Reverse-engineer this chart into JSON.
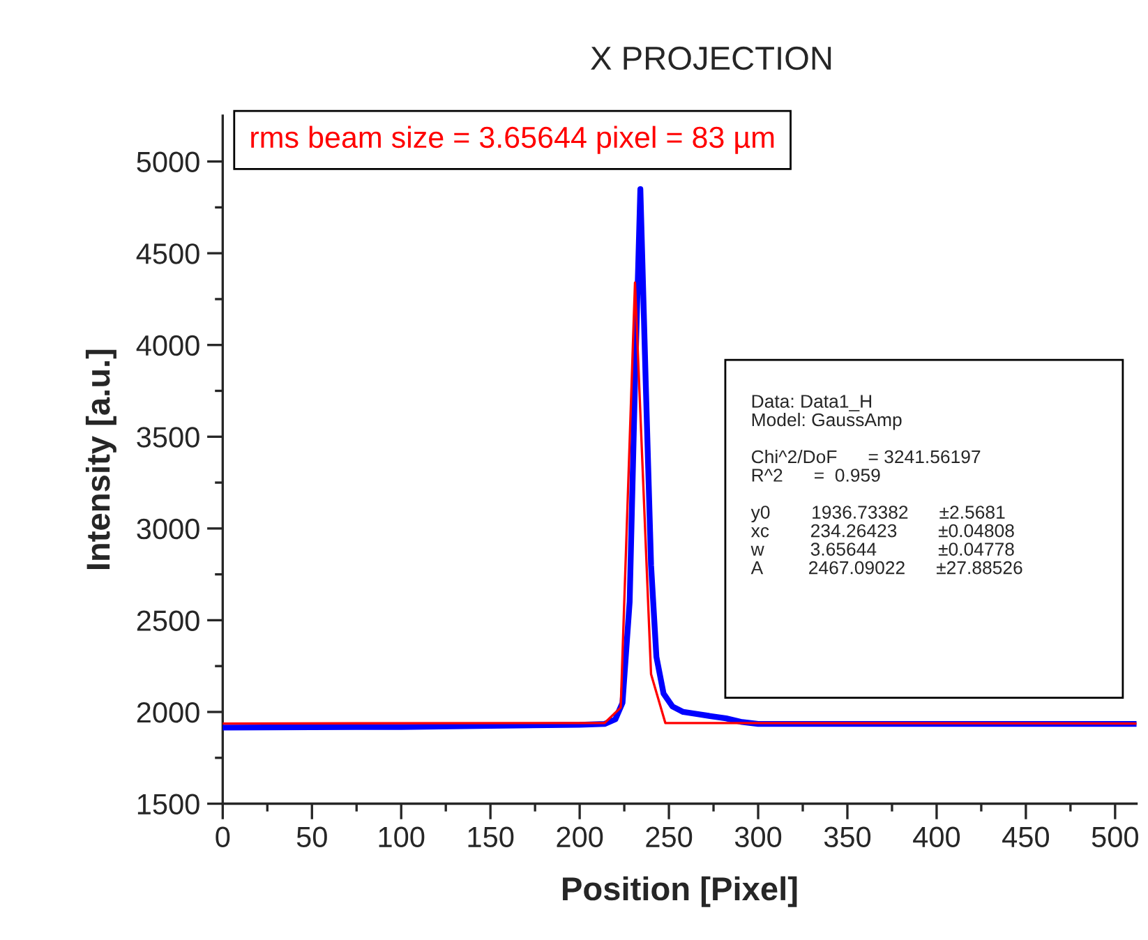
{
  "chart_data": {
    "type": "line",
    "title": "X PROJECTION",
    "xlabel": "Position [Pixel]",
    "ylabel": "Intensity [a.u.]",
    "xlim": [
      0,
      512
    ],
    "xticks": [
      0,
      50,
      100,
      150,
      200,
      250,
      300,
      350,
      400,
      450,
      500
    ],
    "ylim": [
      1500,
      5250
    ],
    "yticks": [
      1500,
      2000,
      2500,
      3000,
      3500,
      4000,
      4500,
      5000
    ],
    "grid": false,
    "legend": false,
    "marker": "none",
    "line_style": "solid",
    "series": [
      {
        "color": "#0000ff",
        "x": [
          0,
          50,
          100,
          150,
          200,
          214,
          220,
          224,
          228,
          231,
          234,
          237,
          240,
          243,
          247,
          252,
          258,
          265,
          273,
          282,
          291,
          300,
          350,
          400,
          450,
          512
        ],
        "values": [
          1915,
          1917,
          1918,
          1925,
          1930,
          1935,
          1960,
          2050,
          2600,
          3800,
          4850,
          3800,
          2800,
          2300,
          2100,
          2030,
          2000,
          1990,
          1978,
          1965,
          1945,
          1935,
          1935,
          1935,
          1935,
          1935
        ]
      },
      {
        "color": "#ff0000",
        "x": [
          0,
          214,
          223,
          231,
          240,
          248,
          512
        ],
        "values": [
          1937,
          1940,
          2024,
          4340,
          2206,
          1940,
          1937
        ]
      }
    ],
    "annotations": [
      "rms beam size = 3.65644 pixel = 83 µm",
      "Data: Data1_H\nModel: GaussAmp\n\nChi^2/DoF      = 3241.56197\nR^2      =  0.959\n\ny0        1936.73382      ±2.5681\nxc        234.26423        ±0.04808\nw         3.65644            ±0.04778\nA         2467.09022      ±27.88526"
    ]
  }
}
